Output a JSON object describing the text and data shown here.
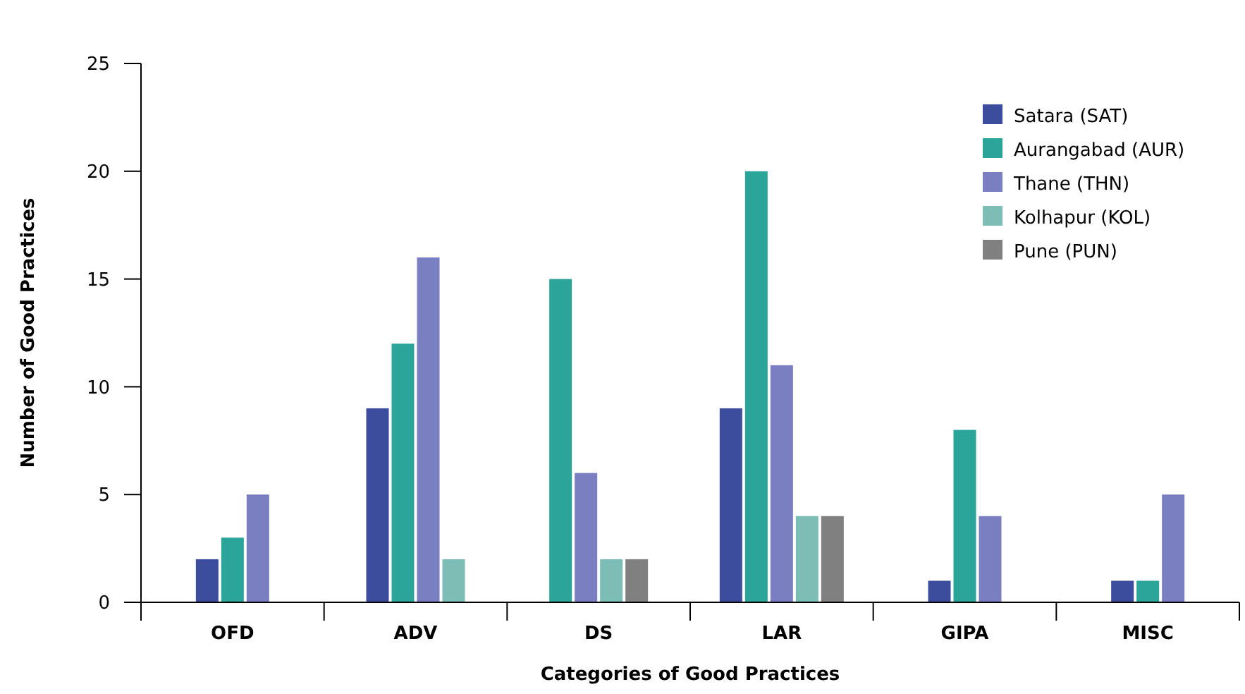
{
  "chart_data": {
    "type": "bar",
    "xlabel": "Categories of Good Practices",
    "ylabel": "Number of Good Practices",
    "categories": [
      "OFD",
      "ADV",
      "DS",
      "LAR",
      "GIPA",
      "MISC"
    ],
    "series": [
      {
        "name": "Satara (SAT)",
        "color": "#3b4d9c",
        "values": [
          2,
          9,
          null,
          9,
          1,
          1
        ]
      },
      {
        "name": "Aurangabad (AUR)",
        "color": "#2ba59a",
        "values": [
          3,
          12,
          15,
          20,
          8,
          1
        ]
      },
      {
        "name": "Thane (THN)",
        "color": "#7a7fc2",
        "values": [
          5,
          16,
          6,
          11,
          4,
          5
        ]
      },
      {
        "name": "Kolhapur (KOL)",
        "color": "#7cbeb6",
        "values": [
          null,
          2,
          2,
          4,
          null,
          null
        ]
      },
      {
        "name": "Pune (PUN)",
        "color": "#808080",
        "values": [
          null,
          null,
          2,
          4,
          null,
          null
        ]
      }
    ],
    "ylim": [
      0,
      25
    ],
    "yticks": [
      0,
      5,
      10,
      15,
      20,
      25
    ],
    "grid": false,
    "legend": "top right"
  }
}
